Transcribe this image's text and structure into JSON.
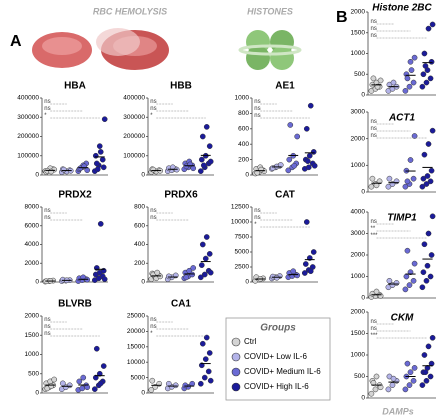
{
  "labels": {
    "panel_a": "A",
    "panel_b": "B",
    "rbc": "RBC HEMOLYSIS",
    "histones": "HISTONES",
    "damps": "DAMPs",
    "legend_title": "Groups"
  },
  "chart_data": [
    {
      "type": "strip",
      "title": "HBA",
      "ylim": [
        0,
        400000
      ],
      "yticks": [
        0,
        100000,
        200000,
        300000,
        400000
      ],
      "annotations": [
        "ns",
        "ns",
        "*"
      ],
      "series": [
        {
          "name": "Ctrl",
          "color": "#d4d4d4",
          "values": [
            20000,
            25000,
            30000,
            15000,
            35000,
            28000,
            22000,
            18000
          ],
          "mean": 24000
        },
        {
          "name": "COVID+ Low IL-6",
          "color": "#b3b3e8",
          "values": [
            15000,
            20000,
            25000,
            30000,
            18000,
            22000,
            28000
          ],
          "mean": 23000
        },
        {
          "name": "COVID+ Medium IL-6",
          "color": "#6a6ad4",
          "values": [
            20000,
            40000,
            60000,
            30000,
            50000,
            25000,
            35000,
            45000
          ],
          "mean": 38000
        },
        {
          "name": "COVID+ High IL-6",
          "color": "#1b1b9a",
          "values": [
            20000,
            50000,
            80000,
            100000,
            150000,
            40000,
            60000,
            120000,
            290000,
            30000
          ],
          "mean": 94000
        }
      ]
    },
    {
      "type": "strip",
      "title": "HBB",
      "ylim": [
        0,
        400000
      ],
      "yticks": [
        0,
        100000,
        200000,
        300000,
        400000
      ],
      "annotations": [
        "ns",
        "ns",
        "*"
      ],
      "series": [
        {
          "name": "Ctrl",
          "color": "#d4d4d4",
          "values": [
            15000,
            20000,
            25000,
            30000,
            18000,
            22000,
            28000
          ],
          "mean": 23000
        },
        {
          "name": "COVID+ Low IL-6",
          "color": "#b3b3e8",
          "values": [
            20000,
            25000,
            30000,
            35000,
            40000,
            28000
          ],
          "mean": 30000
        },
        {
          "name": "COVID+ Medium IL-6",
          "color": "#6a6ad4",
          "values": [
            30000,
            40000,
            50000,
            60000,
            70000,
            35000,
            45000,
            55000
          ],
          "mean": 48000
        },
        {
          "name": "COVID+ High IL-6",
          "color": "#1b1b9a",
          "values": [
            20000,
            40000,
            60000,
            80000,
            100000,
            150000,
            200000,
            250000,
            70000,
            50000
          ],
          "mean": 102000
        }
      ]
    },
    {
      "type": "strip",
      "title": "AE1",
      "ylim": [
        0,
        1000
      ],
      "yticks": [
        0,
        200,
        400,
        600,
        800,
        1000
      ],
      "annotations": [
        "ns",
        "ns",
        "ns"
      ],
      "series": [
        {
          "name": "Ctrl",
          "color": "#d4d4d4",
          "values": [
            20,
            40,
            60,
            80,
            100,
            50,
            30,
            70
          ],
          "mean": 56
        },
        {
          "name": "COVID+ Low IL-6",
          "color": "#b3b3e8",
          "values": [
            80,
            100,
            120,
            90,
            110,
            130
          ],
          "mean": 105
        },
        {
          "name": "COVID+ Medium IL-6",
          "color": "#6a6ad4",
          "values": [
            60,
            100,
            150,
            200,
            250,
            500,
            650,
            120
          ],
          "mean": 254
        },
        {
          "name": "COVID+ High IL-6",
          "color": "#1b1b9a",
          "values": [
            80,
            100,
            150,
            200,
            250,
            300,
            600,
            900,
            120,
            180
          ],
          "mean": 288
        }
      ]
    },
    {
      "type": "strip",
      "title": "PRDX2",
      "ylim": [
        0,
        8000
      ],
      "yticks": [
        0,
        2000,
        4000,
        6000,
        8000
      ],
      "annotations": [
        "ns",
        "ns"
      ],
      "series": [
        {
          "name": "Ctrl",
          "color": "#d4d4d4",
          "values": [
            50,
            100,
            150,
            80,
            120
          ],
          "mean": 100
        },
        {
          "name": "COVID+ Low IL-6",
          "color": "#b3b3e8",
          "values": [
            100,
            150,
            200,
            250,
            180
          ],
          "mean": 176
        },
        {
          "name": "COVID+ Medium IL-6",
          "color": "#6a6ad4",
          "values": [
            100,
            200,
            300,
            400,
            500,
            250
          ],
          "mean": 292
        },
        {
          "name": "COVID+ High IL-6",
          "color": "#1b1b9a",
          "values": [
            200,
            400,
            600,
            800,
            1000,
            1200,
            1500,
            6200,
            300
          ],
          "mean": 1356
        }
      ]
    },
    {
      "type": "strip",
      "title": "PRDX6",
      "ylim": [
        0,
        800
      ],
      "yticks": [
        0,
        200,
        400,
        600,
        800
      ],
      "annotations": [
        "ns",
        "ns"
      ],
      "series": [
        {
          "name": "Ctrl",
          "color": "#d4d4d4",
          "values": [
            30,
            50,
            70,
            90,
            40,
            60,
            80,
            100
          ],
          "mean": 65
        },
        {
          "name": "COVID+ Low IL-6",
          "color": "#b3b3e8",
          "values": [
            30,
            50,
            70,
            60
          ],
          "mean": 53
        },
        {
          "name": "COVID+ Medium IL-6",
          "color": "#6a6ad4",
          "values": [
            40,
            60,
            80,
            100,
            120,
            150,
            50
          ],
          "mean": 86
        },
        {
          "name": "COVID+ High IL-6",
          "color": "#1b1b9a",
          "values": [
            50,
            80,
            120,
            180,
            250,
            300,
            400,
            480,
            100
          ],
          "mean": 218
        }
      ]
    },
    {
      "type": "strip",
      "title": "CAT",
      "ylim": [
        0,
        12500
      ],
      "yticks": [
        0,
        2500,
        5000,
        7500,
        10000,
        12500
      ],
      "annotations": [
        "ns",
        "ns",
        "*"
      ],
      "series": [
        {
          "name": "Ctrl",
          "color": "#d4d4d4",
          "values": [
            200,
            400,
            600,
            800,
            500
          ],
          "mean": 500
        },
        {
          "name": "COVID+ Low IL-6",
          "color": "#b3b3e8",
          "values": [
            600,
            800,
            1000,
            900,
            700
          ],
          "mean": 800
        },
        {
          "name": "COVID+ Medium IL-6",
          "color": "#6a6ad4",
          "values": [
            800,
            1000,
            1200,
            1500,
            1800,
            1100
          ],
          "mean": 1233
        },
        {
          "name": "COVID+ High IL-6",
          "color": "#1b1b9a",
          "values": [
            1500,
            2000,
            2500,
            3000,
            4000,
            5000,
            10000,
            1800
          ],
          "mean": 3725
        }
      ]
    },
    {
      "type": "strip",
      "title": "BLVRB",
      "ylim": [
        0,
        2000
      ],
      "yticks": [
        0,
        500,
        1000,
        1500,
        2000
      ],
      "annotations": [
        "ns",
        "ns",
        "ns"
      ],
      "series": [
        {
          "name": "Ctrl",
          "color": "#d4d4d4",
          "values": [
            100,
            150,
            200,
            250,
            300,
            350,
            120,
            180
          ],
          "mean": 206
        },
        {
          "name": "COVID+ Low IL-6",
          "color": "#b3b3e8",
          "values": [
            100,
            150,
            200,
            250
          ],
          "mean": 175
        },
        {
          "name": "COVID+ Medium IL-6",
          "color": "#6a6ad4",
          "values": [
            80,
            120,
            200,
            300,
            400,
            150
          ],
          "mean": 208
        },
        {
          "name": "COVID+ High IL-6",
          "color": "#1b1b9a",
          "values": [
            100,
            200,
            300,
            400,
            500,
            700,
            1150,
            250
          ],
          "mean": 450
        }
      ]
    },
    {
      "type": "strip",
      "title": "CA1",
      "ylim": [
        0,
        25000
      ],
      "yticks": [
        0,
        5000,
        10000,
        15000,
        20000,
        25000
      ],
      "annotations": [
        "ns",
        "ns",
        "*"
      ],
      "series": [
        {
          "name": "Ctrl",
          "color": "#d4d4d4",
          "values": [
            1000,
            2000,
            3000,
            4000
          ],
          "mean": 2500
        },
        {
          "name": "COVID+ Low IL-6",
          "color": "#b3b3e8",
          "values": [
            1500,
            2000,
            2500,
            3000
          ],
          "mean": 2250
        },
        {
          "name": "COVID+ Medium IL-6",
          "color": "#6a6ad4",
          "values": [
            1500,
            2000,
            3000,
            2500
          ],
          "mean": 2250
        },
        {
          "name": "COVID+ High IL-6",
          "color": "#1b1b9a",
          "values": [
            3000,
            5000,
            7000,
            9000,
            11000,
            13000,
            16000,
            18000,
            4000
          ],
          "mean": 9556
        }
      ]
    },
    {
      "type": "strip",
      "title": "Histone 2BC",
      "italic": true,
      "ylim": [
        0,
        2000
      ],
      "yticks": [
        0,
        500,
        1000,
        1500,
        2000
      ],
      "annotations": [
        "ns",
        "ns",
        "ns"
      ],
      "series": [
        {
          "name": "Ctrl",
          "color": "#d4d4d4",
          "values": [
            100,
            150,
            200,
            250,
            300,
            350,
            400,
            200
          ],
          "mean": 244
        },
        {
          "name": "COVID+ Low IL-6",
          "color": "#b3b3e8",
          "values": [
            100,
            150,
            200,
            250,
            300
          ],
          "mean": 200
        },
        {
          "name": "COVID+ Medium IL-6",
          "color": "#6a6ad4",
          "values": [
            100,
            200,
            300,
            500,
            800,
            900,
            400,
            600
          ],
          "mean": 475
        },
        {
          "name": "COVID+ High IL-6",
          "color": "#1b1b9a",
          "values": [
            200,
            300,
            400,
            500,
            600,
            800,
            1000,
            1600,
            1700,
            700
          ],
          "mean": 780
        }
      ]
    },
    {
      "type": "strip",
      "title": "ACT1",
      "italic": true,
      "ylim": [
        0,
        3000
      ],
      "yticks": [
        0,
        1000,
        2000,
        3000
      ],
      "annotations": [
        "ns",
        "ns",
        "ns"
      ],
      "series": [
        {
          "name": "Ctrl",
          "color": "#d4d4d4",
          "values": [
            200,
            300,
            400,
            500,
            250
          ],
          "mean": 330
        },
        {
          "name": "COVID+ Low IL-6",
          "color": "#b3b3e8",
          "values": [
            200,
            300,
            400,
            500
          ],
          "mean": 350
        },
        {
          "name": "COVID+ Medium IL-6",
          "color": "#6a6ad4",
          "values": [
            200,
            300,
            500,
            800,
            1200,
            2100,
            400
          ],
          "mean": 786
        },
        {
          "name": "COVID+ High IL-6",
          "color": "#1b1b9a",
          "values": [
            200,
            300,
            400,
            500,
            600,
            800,
            1400,
            1800,
            2300
          ],
          "mean": 922
        }
      ]
    },
    {
      "type": "strip",
      "title": "TIMP1",
      "italic": true,
      "ylim": [
        0,
        4000
      ],
      "yticks": [
        0,
        1000,
        2000,
        3000,
        4000
      ],
      "annotations": [
        "ns",
        "**",
        "***"
      ],
      "series": [
        {
          "name": "Ctrl",
          "color": "#d4d4d4",
          "values": [
            50,
            100,
            150,
            200,
            300,
            100
          ],
          "mean": 150
        },
        {
          "name": "COVID+ Low IL-6",
          "color": "#b3b3e8",
          "values": [
            500,
            600,
            700,
            800
          ],
          "mean": 650
        },
        {
          "name": "COVID+ Medium IL-6",
          "color": "#6a6ad4",
          "values": [
            400,
            600,
            800,
            1000,
            1200,
            1600,
            2200
          ],
          "mean": 1114
        },
        {
          "name": "COVID+ High IL-6",
          "color": "#1b1b9a",
          "values": [
            500,
            800,
            1000,
            1200,
            1500,
            2000,
            2500,
            3000,
            3800
          ],
          "mean": 1811
        }
      ]
    },
    {
      "type": "strip",
      "title": "CKM",
      "italic": true,
      "ylim": [
        0,
        2000
      ],
      "yticks": [
        0,
        500,
        1000,
        1500,
        2000
      ],
      "annotations": [
        "ns",
        "ns",
        "***"
      ],
      "series": [
        {
          "name": "Ctrl",
          "color": "#d4d4d4",
          "values": [
            100,
            200,
            300,
            400,
            500,
            250,
            350
          ],
          "mean": 300
        },
        {
          "name": "COVID+ Low IL-6",
          "color": "#b3b3e8",
          "values": [
            200,
            300,
            400,
            500,
            450
          ],
          "mean": 370
        },
        {
          "name": "COVID+ Medium IL-6",
          "color": "#6a6ad4",
          "values": [
            200,
            300,
            400,
            500,
            600,
            700,
            800
          ],
          "mean": 500
        },
        {
          "name": "COVID+ High IL-6",
          "color": "#1b1b9a",
          "values": [
            300,
            400,
            500,
            600,
            700,
            800,
            1000,
            1200,
            1400,
            600
          ],
          "mean": 750
        }
      ]
    }
  ]
}
